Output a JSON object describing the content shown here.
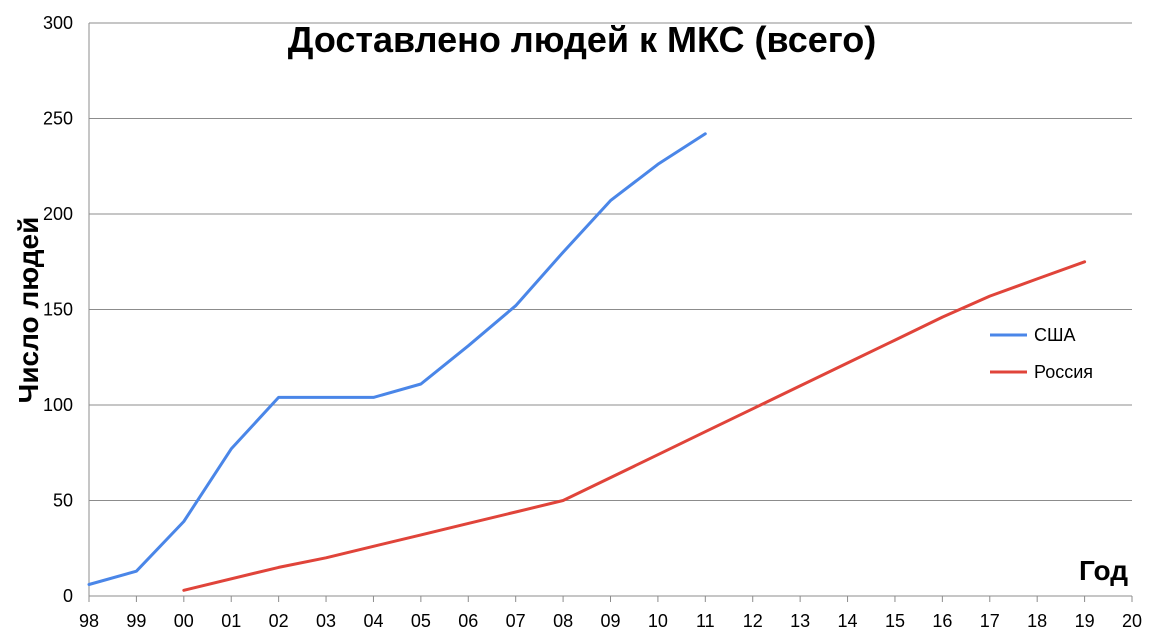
{
  "chart_data": {
    "type": "line",
    "title": "Доставлено людей к МКС (всего)",
    "xlabel": "Год",
    "ylabel": "Число людей",
    "x_ticks": [
      "98",
      "99",
      "00",
      "01",
      "02",
      "03",
      "04",
      "05",
      "06",
      "07",
      "08",
      "09",
      "10",
      "11",
      "12",
      "13",
      "14",
      "15",
      "16",
      "17",
      "18",
      "19",
      "20"
    ],
    "ylim": [
      0,
      300
    ],
    "y_ticks": [
      "0",
      "50",
      "100",
      "150",
      "200",
      "250",
      "300"
    ],
    "grid": true,
    "legend_position": "right",
    "series": [
      {
        "name": "США",
        "color": "#4a86e8",
        "x": [
          "98",
          "99",
          "00",
          "01",
          "02",
          "03",
          "04",
          "05",
          "06",
          "07",
          "08",
          "09",
          "10",
          "11"
        ],
        "values": [
          6,
          13,
          39,
          77,
          104,
          104,
          104,
          111,
          131,
          152,
          180,
          207,
          226,
          242
        ]
      },
      {
        "name": "Россия",
        "color": "#e0443a",
        "x": [
          "00",
          "02",
          "03",
          "04",
          "05",
          "06",
          "07",
          "08",
          "09",
          "10",
          "11",
          "12",
          "13",
          "14",
          "15",
          "16",
          "17",
          "18",
          "19"
        ],
        "values": [
          3,
          15,
          20,
          26,
          32,
          38,
          44,
          50,
          62,
          74,
          86,
          98,
          110,
          122,
          134,
          146,
          157,
          166,
          175
        ]
      }
    ]
  }
}
